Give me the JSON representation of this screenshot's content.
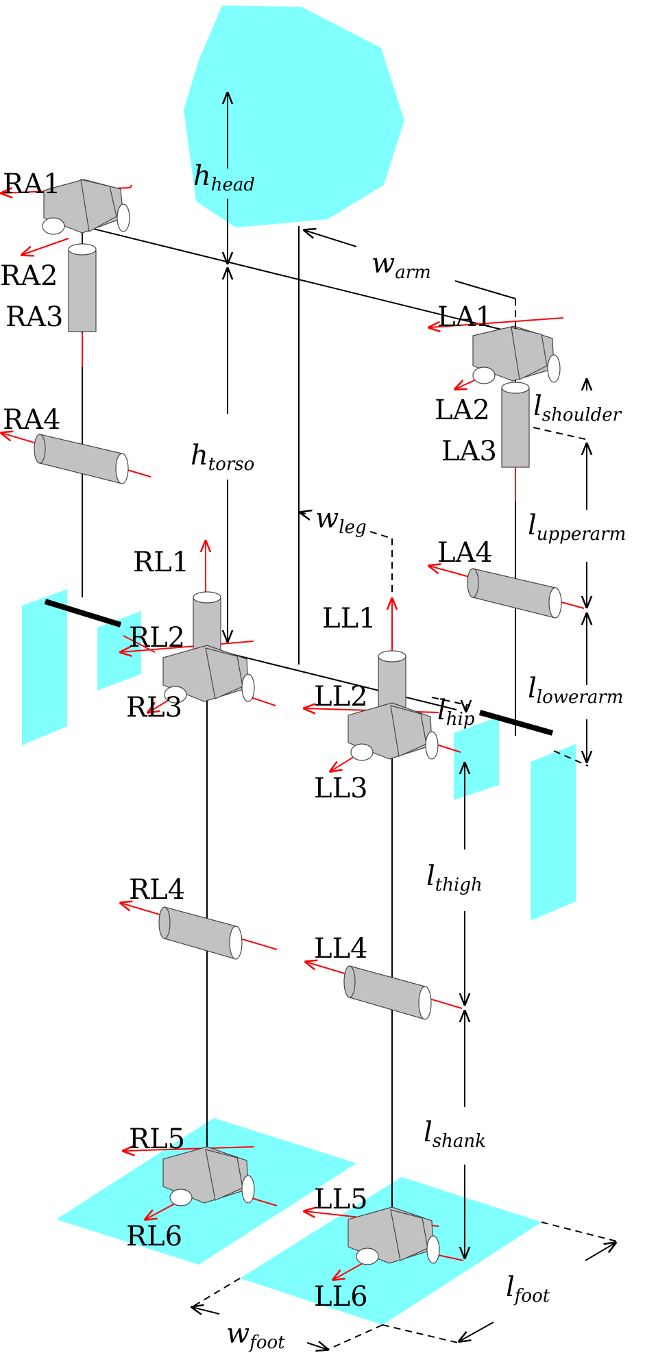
{
  "joints": {
    "ra1": "RA1",
    "ra2": "RA2",
    "ra3": "RA3",
    "ra4": "RA4",
    "la1": "LA1",
    "la2": "LA2",
    "la3": "LA3",
    "la4": "LA4",
    "rl1": "RL1",
    "rl2": "RL2",
    "rl3": "RL3",
    "rl4": "RL4",
    "rl5": "RL5",
    "rl6": "RL6",
    "ll1": "LL1",
    "ll2": "LL2",
    "ll3": "LL3",
    "ll4": "LL4",
    "ll5": "LL5",
    "ll6": "LL6"
  },
  "dimensions": {
    "h_head": {
      "base": "h",
      "sub": "head"
    },
    "h_torso": {
      "base": "h",
      "sub": "torso"
    },
    "w_arm": {
      "base": "w",
      "sub": "arm"
    },
    "w_leg": {
      "base": "w",
      "sub": "leg"
    },
    "l_shoulder": {
      "base": "l",
      "sub": "shoulder"
    },
    "l_upperarm": {
      "base": "l",
      "sub": "upperarm"
    },
    "l_lowerarm": {
      "base": "l",
      "sub": "lowerarm"
    },
    "l_hip": {
      "base": "l",
      "sub": "hip"
    },
    "l_thigh": {
      "base": "l",
      "sub": "thigh"
    },
    "l_shank": {
      "base": "l",
      "sub": "shank"
    },
    "w_foot": {
      "base": "w",
      "sub": "foot"
    },
    "l_foot": {
      "base": "l",
      "sub": "foot"
    }
  },
  "colors": {
    "body_parts": "#80ffff",
    "joint_axis": "#ff0000",
    "actuator": "#c2c2c2",
    "line": "#000000"
  }
}
